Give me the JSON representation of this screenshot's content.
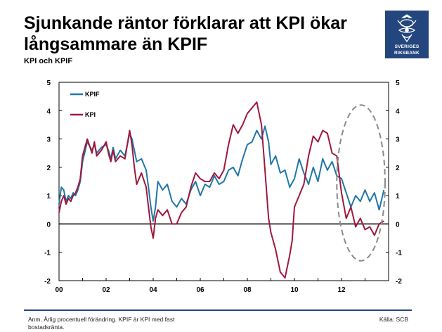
{
  "header": {
    "title_line1": "Sjunkande räntor förklarar att KPI ökar",
    "title_line2": "långsammare än KPIF",
    "subtitle": "KPI och KPIF"
  },
  "logo": {
    "line1": "SVERIGES",
    "line2": "RIKSBANK",
    "color": "#24467e"
  },
  "footer": {
    "note": "Anm. Årlig procentuell förändring. KPIF är KPI med fast bostadsränta.",
    "source": "Källa: SCB"
  },
  "chart_data": {
    "type": "line",
    "x_label_ticks": [
      "00",
      "02",
      "04",
      "06",
      "08",
      "10",
      "12"
    ],
    "xlim": [
      2000,
      2014
    ],
    "ylim": [
      -2,
      5
    ],
    "yticks": [
      -2,
      -1,
      0,
      1,
      2,
      3,
      4,
      5
    ],
    "grid": false,
    "legend_position": "top-left",
    "colors": {
      "KPIF": "#1f77a8",
      "KPI": "#a1173c",
      "annotation": "#8a8a8a"
    },
    "annotation": {
      "type": "dashed-ellipse",
      "x_range": [
        2011.8,
        2013.85
      ],
      "y_range": [
        -1.3,
        4.2
      ]
    },
    "series": [
      {
        "name": "KPIF",
        "x": [
          2000.0,
          2000.1,
          2000.2,
          2000.3,
          2000.4,
          2000.5,
          2000.6,
          2000.7,
          2000.8,
          2000.9,
          2001.0,
          2001.2,
          2001.4,
          2001.5,
          2001.6,
          2001.8,
          2002.0,
          2002.1,
          2002.2,
          2002.3,
          2002.4,
          2002.6,
          2002.8,
          2003.0,
          2003.1,
          2003.2,
          2003.3,
          2003.5,
          2003.7,
          2003.8,
          2003.9,
          2004.0,
          2004.1,
          2004.2,
          2004.4,
          2004.6,
          2004.8,
          2005.0,
          2005.2,
          2005.4,
          2005.6,
          2005.8,
          2006.0,
          2006.2,
          2006.4,
          2006.6,
          2006.8,
          2007.0,
          2007.2,
          2007.4,
          2007.6,
          2007.8,
          2008.0,
          2008.2,
          2008.4,
          2008.6,
          2008.75,
          2008.9,
          2009.0,
          2009.2,
          2009.4,
          2009.6,
          2009.8,
          2010.0,
          2010.2,
          2010.4,
          2010.6,
          2010.8,
          2011.0,
          2011.2,
          2011.4,
          2011.6,
          2011.8,
          2012.0,
          2012.2,
          2012.4,
          2012.6,
          2012.8,
          2013.0,
          2013.2,
          2013.4,
          2013.6,
          2013.8
        ],
        "y": [
          0.7,
          1.3,
          1.2,
          0.8,
          1.0,
          0.9,
          1.1,
          1.0,
          1.2,
          1.5,
          2.2,
          2.9,
          2.6,
          2.8,
          2.5,
          2.7,
          2.8,
          2.6,
          2.3,
          2.7,
          2.3,
          2.6,
          2.4,
          3.2,
          3.0,
          2.6,
          2.2,
          2.3,
          1.9,
          1.3,
          0.6,
          0.1,
          0.6,
          1.5,
          1.2,
          1.4,
          0.8,
          0.6,
          0.9,
          0.7,
          1.2,
          1.5,
          1.0,
          1.4,
          1.3,
          1.7,
          1.4,
          1.5,
          1.9,
          2.0,
          1.7,
          2.3,
          2.8,
          2.9,
          3.3,
          3.0,
          3.45,
          2.9,
          2.1,
          2.4,
          1.8,
          1.9,
          1.3,
          1.6,
          2.3,
          1.8,
          1.4,
          2.0,
          1.5,
          2.3,
          1.9,
          2.2,
          1.7,
          1.6,
          1.1,
          0.6,
          1.0,
          0.8,
          1.2,
          0.8,
          1.1,
          0.5,
          1.2
        ]
      },
      {
        "name": "KPI",
        "x": [
          2000.0,
          2000.1,
          2000.2,
          2000.3,
          2000.4,
          2000.5,
          2000.6,
          2000.7,
          2000.8,
          2000.9,
          2001.0,
          2001.2,
          2001.4,
          2001.5,
          2001.6,
          2001.8,
          2002.0,
          2002.1,
          2002.2,
          2002.3,
          2002.4,
          2002.6,
          2002.8,
          2003.0,
          2003.1,
          2003.2,
          2003.3,
          2003.5,
          2003.7,
          2003.8,
          2003.9,
          2004.0,
          2004.1,
          2004.2,
          2004.4,
          2004.6,
          2004.8,
          2005.0,
          2005.2,
          2005.4,
          2005.6,
          2005.8,
          2006.0,
          2006.2,
          2006.4,
          2006.6,
          2006.8,
          2007.0,
          2007.2,
          2007.4,
          2007.6,
          2007.8,
          2008.0,
          2008.2,
          2008.4,
          2008.6,
          2008.75,
          2008.9,
          2009.0,
          2009.2,
          2009.4,
          2009.6,
          2009.8,
          2009.9,
          2010.0,
          2010.2,
          2010.4,
          2010.6,
          2010.8,
          2011.0,
          2011.2,
          2011.4,
          2011.6,
          2011.8,
          2012.0,
          2012.2,
          2012.4,
          2012.6,
          2012.8,
          2013.0,
          2013.2,
          2013.4,
          2013.6,
          2013.8
        ],
        "y": [
          0.4,
          0.8,
          1.0,
          0.7,
          0.9,
          0.8,
          1.0,
          1.1,
          1.3,
          1.6,
          2.4,
          3.0,
          2.5,
          2.9,
          2.4,
          2.6,
          2.9,
          2.5,
          2.2,
          2.6,
          2.2,
          2.4,
          2.3,
          3.3,
          2.8,
          2.0,
          1.4,
          1.8,
          1.3,
          0.6,
          -0.1,
          -0.5,
          0.2,
          0.5,
          0.3,
          0.5,
          0.0,
          0.0,
          0.4,
          0.6,
          1.3,
          1.8,
          1.6,
          1.5,
          1.5,
          1.8,
          1.6,
          1.9,
          2.8,
          3.5,
          3.2,
          3.5,
          3.9,
          4.1,
          4.3,
          3.5,
          1.9,
          0.2,
          -0.3,
          -0.9,
          -1.7,
          -1.9,
          -1.1,
          -0.6,
          0.6,
          1.0,
          1.4,
          2.4,
          3.1,
          2.9,
          3.3,
          3.2,
          2.5,
          2.4,
          1.1,
          0.2,
          0.6,
          -0.1,
          0.2,
          -0.2,
          -0.1,
          -0.4,
          0.0,
          0.1
        ]
      }
    ]
  }
}
